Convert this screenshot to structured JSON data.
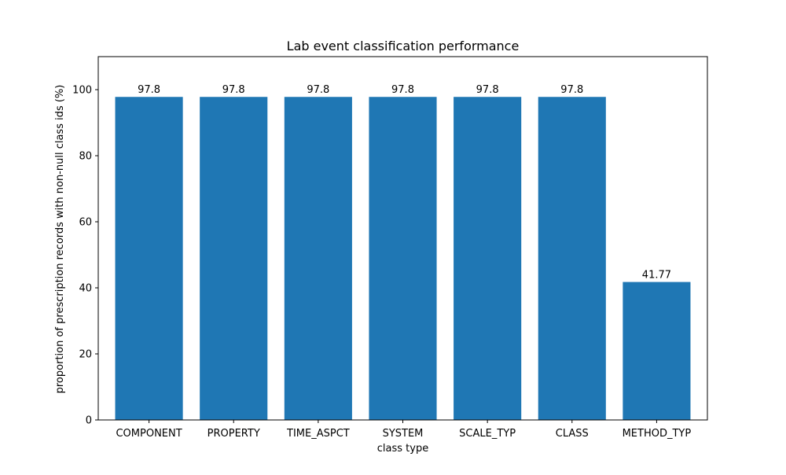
{
  "chart_data": {
    "type": "bar",
    "title": "Lab event classification performance",
    "xlabel": "class type",
    "ylabel": "proportion of prescription records with non-null class ids (%)",
    "categories": [
      "COMPONENT",
      "PROPERTY",
      "TIME_ASPCT",
      "SYSTEM",
      "SCALE_TYP",
      "CLASS",
      "METHOD_TYP"
    ],
    "values": [
      97.8,
      97.8,
      97.8,
      97.8,
      97.8,
      97.8,
      41.77
    ],
    "data_labels": [
      "97.8",
      "97.8",
      "97.8",
      "97.8",
      "97.8",
      "97.8",
      "41.77"
    ],
    "ylim": [
      0,
      110
    ],
    "yticks": [
      0,
      20,
      40,
      60,
      80,
      100
    ],
    "grid": false,
    "legend": "none",
    "bar_color": "#1f77b4"
  }
}
